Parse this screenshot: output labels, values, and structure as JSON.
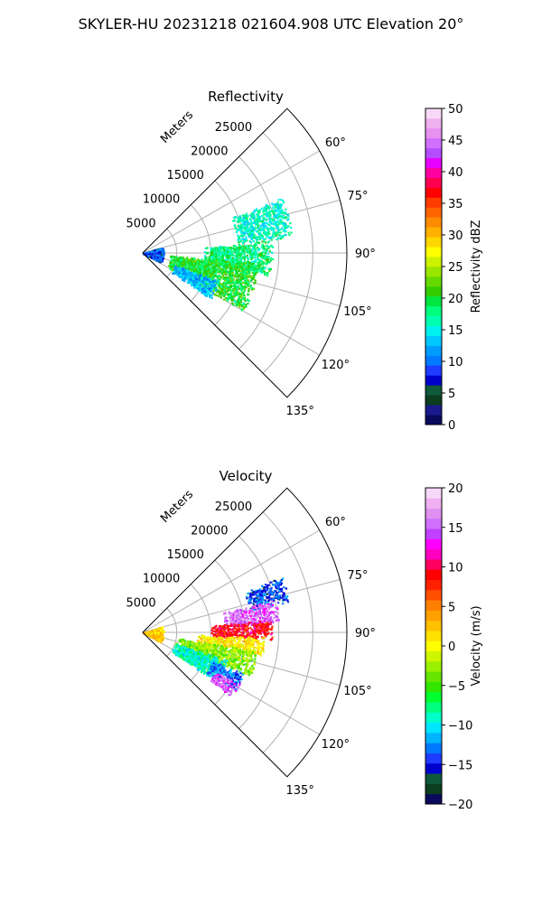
{
  "suptitle": "SKYLER-HU  20231218  021604.908 UTC Elevation 20°",
  "range_label": "Meters",
  "chart_data": [
    {
      "type": "polar-sector",
      "title": "Reflectivity",
      "theta_range_deg": [
        45,
        135
      ],
      "r_max": 30000,
      "r_ticks": [
        5000,
        10000,
        15000,
        20000,
        25000
      ],
      "r_tick_labels": [
        "5000",
        "10000",
        "15000",
        "20000",
        "25000"
      ],
      "theta_ticks": [
        60,
        75,
        90,
        105,
        120,
        135
      ],
      "theta_tick_labels": [
        "60°",
        "75°",
        "90°",
        "105°",
        "120°",
        "135°"
      ],
      "grid": true,
      "colorbar": {
        "label": "Reflectivity dBZ",
        "min": 0,
        "max": 50,
        "ticks": [
          0,
          5,
          10,
          15,
          20,
          25,
          30,
          35,
          40,
          45,
          50
        ],
        "tick_labels": [
          "0",
          "5",
          "10",
          "15",
          "20",
          "25",
          "30",
          "35",
          "40",
          "45",
          "50"
        ],
        "colors": [
          "#0a0a5c",
          "#1a1a8c",
          "#0b3d1e",
          "#0f5a3a",
          "#0000cd",
          "#1e3cff",
          "#0078ff",
          "#009bff",
          "#00c8ff",
          "#00f0f0",
          "#00ffb0",
          "#00ff7f",
          "#00e640",
          "#33cc00",
          "#66d900",
          "#99e600",
          "#ccf200",
          "#ffff00",
          "#ffd700",
          "#ffb000",
          "#ff8c00",
          "#ff6400",
          "#ff3c00",
          "#ff0000",
          "#ff0050",
          "#ff00a0",
          "#e600ff",
          "#b44cff",
          "#d070ff",
          "#e890f0",
          "#f0b0f0",
          "#f8d8f8"
        ]
      },
      "echo_regions": [
        {
          "theta": [
            68,
            84
          ],
          "r": [
            14000,
            22000
          ],
          "value": 16
        },
        {
          "theta": [
            84,
            100
          ],
          "r": [
            9000,
            19000
          ],
          "value": 18
        },
        {
          "theta": [
            95,
            120
          ],
          "r": [
            4000,
            17000
          ],
          "value": 20
        },
        {
          "theta": [
            110,
            124
          ],
          "r": [
            5000,
            12000
          ],
          "value": 13
        },
        {
          "theta": [
            72,
            118
          ],
          "r": [
            0,
            3000
          ],
          "value": 9
        }
      ]
    },
    {
      "type": "polar-sector",
      "title": "Velocity",
      "theta_range_deg": [
        45,
        135
      ],
      "r_max": 30000,
      "r_ticks": [
        5000,
        10000,
        15000,
        20000,
        25000
      ],
      "r_tick_labels": [
        "5000",
        "10000",
        "15000",
        "20000",
        "25000"
      ],
      "theta_ticks": [
        60,
        75,
        90,
        105,
        120,
        135
      ],
      "theta_tick_labels": [
        "60°",
        "75°",
        "90°",
        "105°",
        "120°",
        "135°"
      ],
      "grid": true,
      "colorbar": {
        "label": "Velocity (m/s)",
        "min": -20,
        "max": 20,
        "ticks": [
          -20,
          -15,
          -10,
          -5,
          0,
          5,
          10,
          15,
          20
        ],
        "tick_labels": [
          "−20",
          "−15",
          "−10",
          "−5",
          "0",
          "5",
          "10",
          "15",
          "20"
        ],
        "colors": [
          "#0a0a5c",
          "#0b3d1e",
          "#0f5a3a",
          "#0000cd",
          "#1e3cff",
          "#0078ff",
          "#00b4ff",
          "#00e6ff",
          "#00ffc8",
          "#00ff7f",
          "#00ff30",
          "#33e600",
          "#66e600",
          "#99f000",
          "#ccf500",
          "#ffff00",
          "#ffe000",
          "#ffc000",
          "#ffa000",
          "#ff8000",
          "#ff5000",
          "#ff2000",
          "#ff0000",
          "#ff0060",
          "#ff00c0",
          "#ff00ff",
          "#c040ff",
          "#d070ff",
          "#e090f0",
          "#eeb0f0",
          "#f8d8f8"
        ]
      },
      "echo_regions": [
        {
          "theta": [
            68,
            78
          ],
          "r": [
            16000,
            22000
          ],
          "value": -14
        },
        {
          "theta": [
            76,
            86
          ],
          "r": [
            12000,
            20000
          ],
          "value": 15
        },
        {
          "theta": [
            84,
            93
          ],
          "r": [
            10000,
            19000
          ],
          "value": 9
        },
        {
          "theta": [
            92,
            101
          ],
          "r": [
            8000,
            18000
          ],
          "value": 1
        },
        {
          "theta": [
            99,
            112
          ],
          "r": [
            5000,
            17000
          ],
          "value": -3
        },
        {
          "theta": [
            108,
            124
          ],
          "r": [
            5000,
            13000
          ],
          "value": -9
        },
        {
          "theta": [
            112,
            122
          ],
          "r": [
            11000,
            16000
          ],
          "value": -13
        },
        {
          "theta": [
            118,
            126
          ],
          "r": [
            12000,
            16000
          ],
          "value": 15
        },
        {
          "theta": [
            72,
            118
          ],
          "r": [
            0,
            3000
          ],
          "value": 2
        }
      ]
    }
  ]
}
